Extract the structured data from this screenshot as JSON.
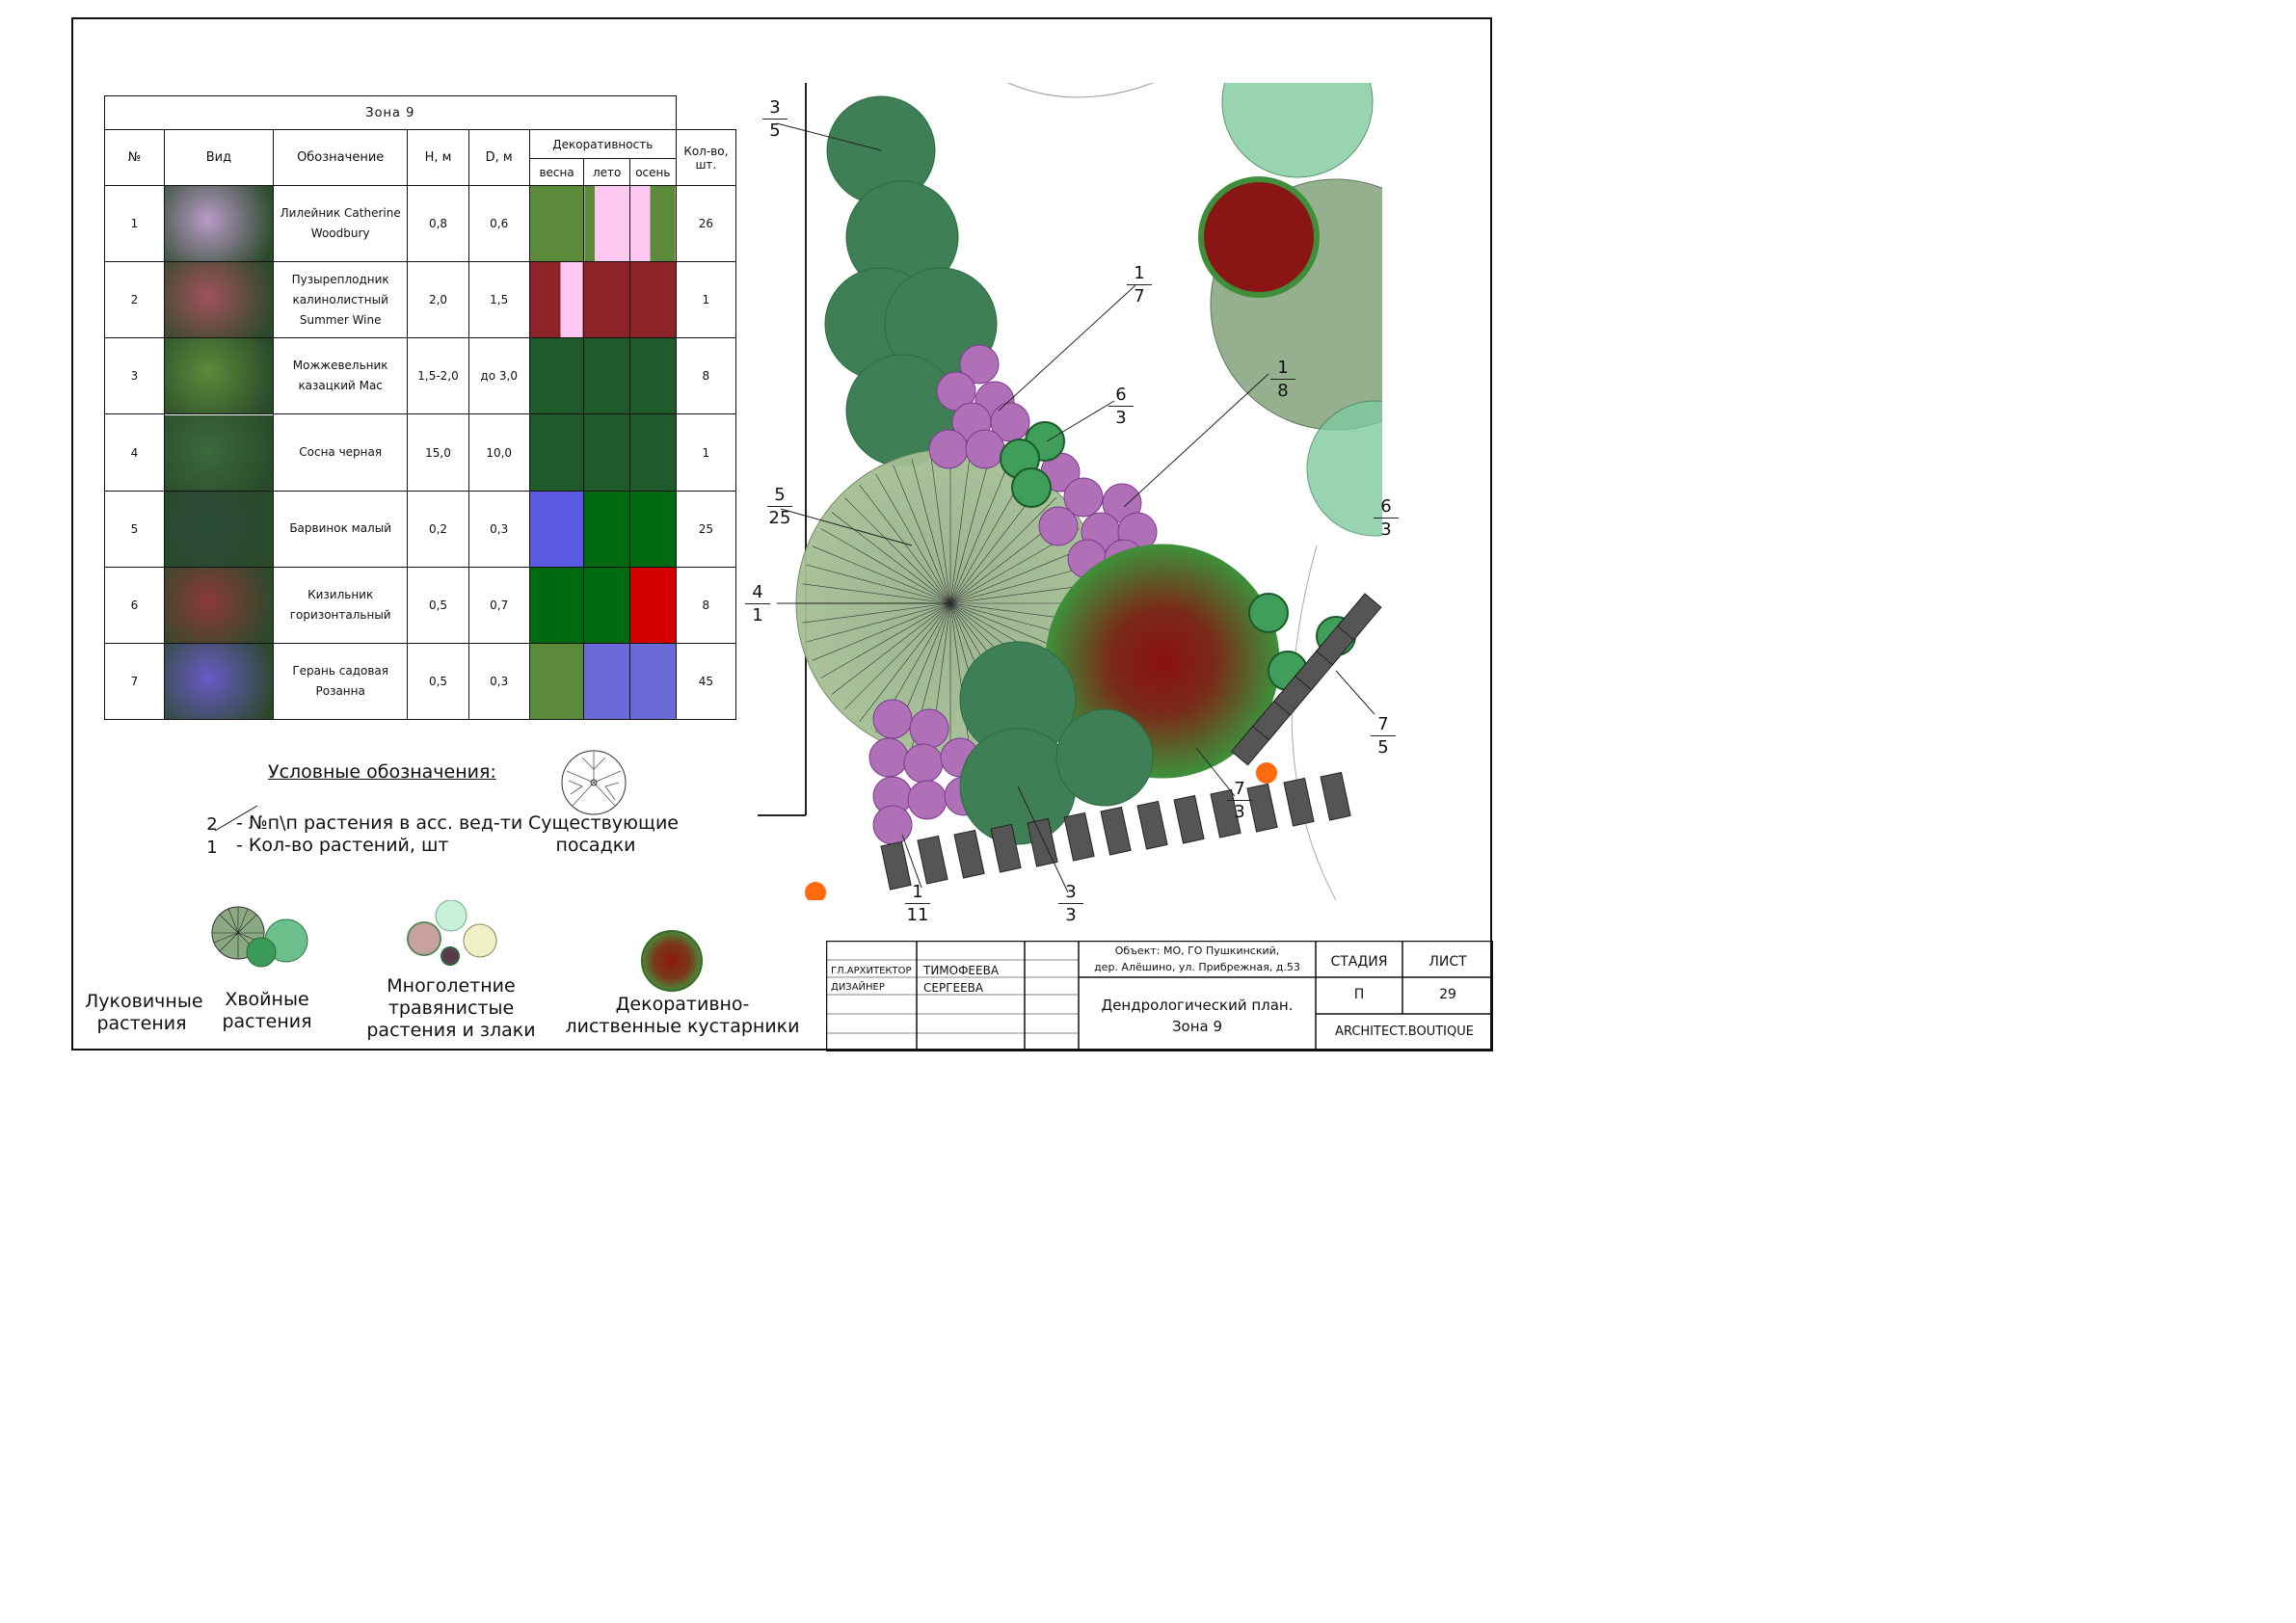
{
  "table": {
    "zone_title": "Зона 9",
    "headers": {
      "no": "№",
      "species": "Вид",
      "designation": "Обозначение",
      "height": "H, м",
      "diameter": "D, м",
      "decor": "Декоративность",
      "spring": "весна",
      "summer": "лето",
      "autumn": "осень",
      "qty": "Кол-во, шт."
    },
    "rows": [
      {
        "no": "1",
        "name": "Лилейник Catherine Woodbury",
        "h": "0,8",
        "d": "0,6",
        "qty": "26",
        "spring": "#5a8a3a",
        "summer": "#ffc8f0",
        "autumn": "#ffc8f0",
        "photo": "#b99ac8"
      },
      {
        "no": "2",
        "name": "Пузыреплодник калинолистный Summer Wine",
        "h": "2,0",
        "d": "1,5",
        "qty": "1",
        "spring": "#8b2328",
        "summer": "#8b2328",
        "autumn": "#8b2328",
        "photo": "#a0525a"
      },
      {
        "no": "3",
        "name": "Можжевельник казацкий Mac",
        "h": "1,5-2,0",
        "d": "до 3,0",
        "qty": "8",
        "spring": "#1f5a2a",
        "summer": "#1f5a2a",
        "autumn": "#1f5a2a",
        "photo": "#5c8a3a"
      },
      {
        "no": "4",
        "name": "Сосна черная",
        "h": "15,0",
        "d": "10,0",
        "qty": "1",
        "spring": "#1f5a2a",
        "summer": "#1f5a2a",
        "autumn": "#1f5a2a",
        "photo": "#3a6a3c"
      },
      {
        "no": "5",
        "name": "Барвинок малый",
        "h": "0,2",
        "d": "0,3",
        "qty": "25",
        "spring": "#5a5ae0",
        "summer": "#006a10",
        "autumn": "#006a10",
        "photo": "#2a4a3a"
      },
      {
        "no": "6",
        "name": "Кизильник горизонтальный",
        "h": "0,5",
        "d": "0,7",
        "qty": "8",
        "spring": "#006a10",
        "summer": "#006a10",
        "autumn": "#d40000",
        "photo": "#8a3a3a"
      },
      {
        "no": "7",
        "name": "Герань садовая Розанна",
        "h": "0,5",
        "d": "0,3",
        "qty": "45",
        "spring": "#5a8a3a",
        "summer": "#6a6ad8",
        "autumn": "#6a6ad8",
        "photo": "#6a5ac8"
      }
    ]
  },
  "legend": {
    "title": "Условные обозначения:",
    "marker_top": "2",
    "marker_bottom": "1",
    "line1": "- №п\\п растения в асс. вед-ти",
    "line2": "- Кол-во растений, шт",
    "existing": "Существующие посадки",
    "bulbous": "Луковичные растения",
    "conifers": "Хвойные растения",
    "perennials": "Многолетние травянистые растения и злаки",
    "shrubs": "Декоративно-лиственные кустарники"
  },
  "plan_labels": [
    {
      "top": "3",
      "bottom": "5"
    },
    {
      "top": "1",
      "bottom": "7"
    },
    {
      "top": "1",
      "bottom": "8"
    },
    {
      "top": "6",
      "bottom": "3"
    },
    {
      "top": "6",
      "bottom": "3"
    },
    {
      "top": "5",
      "bottom": "25"
    },
    {
      "top": "4",
      "bottom": "1"
    },
    {
      "top": "7",
      "bottom": "5"
    },
    {
      "top": "7",
      "bottom": "3"
    },
    {
      "top": "3",
      "bottom": "3"
    },
    {
      "top": "1",
      "bottom": "11"
    }
  ],
  "title_block": {
    "role1": "ГЛ.АРХИТЕКТОР",
    "name1": "ТИМОФЕЕВА",
    "role2": "ДИЗАЙНЕР",
    "name2": "СЕРГЕЕВА",
    "object_line1": "Объект: МО, ГО Пушкинский,",
    "object_line2": "дер. Алёшино, ул. Прибрежная, д.53",
    "sheet_title_1": "Дендрологический план.",
    "sheet_title_2": "Зона 9",
    "stage_label": "СТАДИЯ",
    "sheet_label": "ЛИСТ",
    "stage": "П",
    "sheet": "29",
    "company": "ARCHITECT.BOUTIQUE"
  }
}
